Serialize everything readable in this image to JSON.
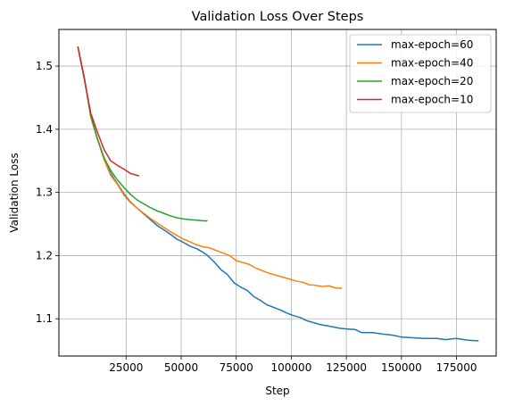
{
  "chart_data": {
    "type": "line",
    "title": "Validation Loss Over Steps",
    "xlabel": "Step",
    "ylabel": "Validation Loss",
    "xlim": [
      -5500,
      193000
    ],
    "ylim": [
      1.041,
      1.558
    ],
    "xticks": [
      25000,
      50000,
      75000,
      100000,
      125000,
      150000,
      175000
    ],
    "xtick_labels": [
      "25000",
      "50000",
      "75000",
      "100000",
      "125000",
      "150000",
      "175000"
    ],
    "yticks": [
      1.1,
      1.2,
      1.3,
      1.4,
      1.5
    ],
    "ytick_labels": [
      "1.1",
      "1.2",
      "1.3",
      "1.4",
      "1.5"
    ],
    "grid": true,
    "legend_position": "top-right",
    "series": [
      {
        "name": "max-epoch=60",
        "color": "#1f77b4",
        "points": [
          [
            3100,
            1.531
          ],
          [
            6000,
            1.482
          ],
          [
            9000,
            1.42
          ],
          [
            12000,
            1.385
          ],
          [
            15000,
            1.354
          ],
          [
            18000,
            1.33
          ],
          [
            21000,
            1.314
          ],
          [
            24000,
            1.298
          ],
          [
            27000,
            1.285
          ],
          [
            30000,
            1.275
          ],
          [
            33000,
            1.266
          ],
          [
            36000,
            1.257
          ],
          [
            39000,
            1.248
          ],
          [
            42000,
            1.241
          ],
          [
            45000,
            1.234
          ],
          [
            48000,
            1.226
          ],
          [
            51000,
            1.221
          ],
          [
            54000,
            1.215
          ],
          [
            57000,
            1.211
          ],
          [
            60000,
            1.205
          ],
          [
            62000,
            1.2
          ],
          [
            65000,
            1.19
          ],
          [
            68000,
            1.178
          ],
          [
            71000,
            1.17
          ],
          [
            74000,
            1.157
          ],
          [
            77000,
            1.15
          ],
          [
            80000,
            1.145
          ],
          [
            83000,
            1.135
          ],
          [
            86000,
            1.129
          ],
          [
            89000,
            1.122
          ],
          [
            92000,
            1.118
          ],
          [
            95000,
            1.114
          ],
          [
            98000,
            1.109
          ],
          [
            101000,
            1.105
          ],
          [
            104000,
            1.102
          ],
          [
            107000,
            1.097
          ],
          [
            110000,
            1.094
          ],
          [
            113000,
            1.091
          ],
          [
            116000,
            1.089
          ],
          [
            119000,
            1.087
          ],
          [
            122000,
            1.085
          ],
          [
            125000,
            1.084
          ],
          [
            129000,
            1.083
          ],
          [
            132000,
            1.078
          ],
          [
            137000,
            1.078
          ],
          [
            141000,
            1.076
          ],
          [
            146000,
            1.074
          ],
          [
            150000,
            1.071
          ],
          [
            155000,
            1.07
          ],
          [
            160000,
            1.069
          ],
          [
            166000,
            1.069
          ],
          [
            170000,
            1.067
          ],
          [
            175000,
            1.069
          ],
          [
            180000,
            1.066
          ],
          [
            185000,
            1.065
          ]
        ]
      },
      {
        "name": "max-epoch=40",
        "color": "#ff7f0e",
        "points": [
          [
            3100,
            1.531
          ],
          [
            6000,
            1.482
          ],
          [
            9000,
            1.42
          ],
          [
            12000,
            1.385
          ],
          [
            15000,
            1.352
          ],
          [
            18000,
            1.327
          ],
          [
            21000,
            1.313
          ],
          [
            24000,
            1.296
          ],
          [
            27000,
            1.284
          ],
          [
            30000,
            1.275
          ],
          [
            33000,
            1.267
          ],
          [
            36000,
            1.259
          ],
          [
            39000,
            1.252
          ],
          [
            42000,
            1.245
          ],
          [
            45000,
            1.238
          ],
          [
            48000,
            1.232
          ],
          [
            51000,
            1.226
          ],
          [
            54000,
            1.222
          ],
          [
            57000,
            1.217
          ],
          [
            60000,
            1.214
          ],
          [
            63000,
            1.212
          ],
          [
            66000,
            1.208
          ],
          [
            69000,
            1.204
          ],
          [
            72000,
            1.2
          ],
          [
            75000,
            1.192
          ],
          [
            78000,
            1.189
          ],
          [
            81000,
            1.186
          ],
          [
            84000,
            1.18
          ],
          [
            87000,
            1.176
          ],
          [
            90000,
            1.172
          ],
          [
            93000,
            1.169
          ],
          [
            96000,
            1.166
          ],
          [
            99000,
            1.163
          ],
          [
            102000,
            1.16
          ],
          [
            105000,
            1.158
          ],
          [
            108000,
            1.154
          ],
          [
            111000,
            1.153
          ],
          [
            114000,
            1.151
          ],
          [
            117000,
            1.152
          ],
          [
            120000,
            1.149
          ],
          [
            123000,
            1.148
          ]
        ]
      },
      {
        "name": "max-epoch=20",
        "color": "#2ca02c",
        "points": [
          [
            3100,
            1.531
          ],
          [
            6000,
            1.482
          ],
          [
            9000,
            1.42
          ],
          [
            12000,
            1.384
          ],
          [
            15000,
            1.355
          ],
          [
            18000,
            1.335
          ],
          [
            21000,
            1.32
          ],
          [
            24000,
            1.308
          ],
          [
            27000,
            1.297
          ],
          [
            30000,
            1.288
          ],
          [
            33000,
            1.282
          ],
          [
            36000,
            1.276
          ],
          [
            39000,
            1.271
          ],
          [
            42000,
            1.267
          ],
          [
            45000,
            1.263
          ],
          [
            48000,
            1.26
          ],
          [
            51000,
            1.258
          ],
          [
            54000,
            1.257
          ],
          [
            57000,
            1.256
          ],
          [
            60000,
            1.255
          ],
          [
            62000,
            1.255
          ]
        ]
      },
      {
        "name": "max-epoch=10",
        "color": "#d62728",
        "points": [
          [
            3100,
            1.531
          ],
          [
            6000,
            1.48
          ],
          [
            9000,
            1.425
          ],
          [
            12000,
            1.395
          ],
          [
            15000,
            1.368
          ],
          [
            18000,
            1.35
          ],
          [
            21000,
            1.343
          ],
          [
            24000,
            1.337
          ],
          [
            27000,
            1.33
          ],
          [
            31000,
            1.326
          ]
        ]
      }
    ]
  }
}
